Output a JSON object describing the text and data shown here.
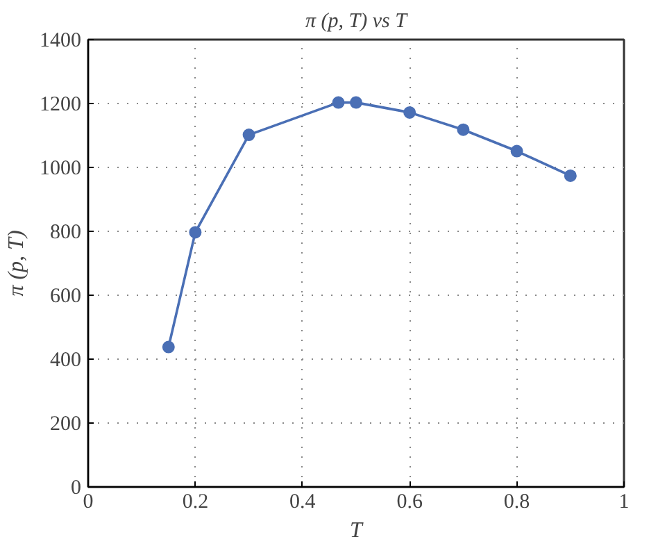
{
  "chart_data": {
    "type": "line",
    "title": "π (p, T) vs T",
    "xlabel": "T",
    "ylabel": "π (p, T)",
    "x": [
      0.15,
      0.2,
      0.3,
      0.467,
      0.5,
      0.6,
      0.7,
      0.8,
      0.9
    ],
    "series": [
      {
        "color": "#4a6fb5",
        "values": [
          438,
          797,
          1102,
          1203,
          1203,
          1172,
          1118,
          1051,
          974
        ]
      }
    ],
    "xlim": [
      0,
      1
    ],
    "xticks": [
      0,
      0.2,
      0.4,
      0.6,
      0.8,
      1
    ],
    "ylim": [
      0,
      1400
    ],
    "yticks": [
      0,
      200,
      400,
      600,
      800,
      1000,
      1200,
      1400
    ],
    "grid": true,
    "marker": "circle",
    "line_style": "solid"
  }
}
